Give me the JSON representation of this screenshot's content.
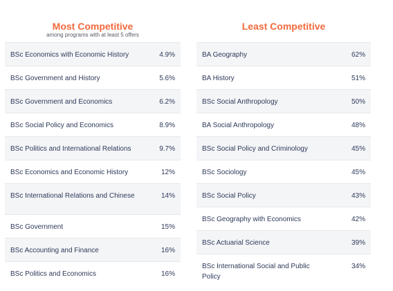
{
  "most": {
    "title": "Most Competitive",
    "subtitle": "among programs with at least 5 offers",
    "rows": [
      {
        "name": "BSc Economics with Economic History",
        "value": "4.9%"
      },
      {
        "name": "BSc Government and History",
        "value": "5.6%"
      },
      {
        "name": "BSc Government and Economics",
        "value": "6.2%"
      },
      {
        "name": "BSc Social Policy and Economics",
        "value": "8.9%"
      },
      {
        "name": "BSc Politics and International Relations",
        "value": "9.7%"
      },
      {
        "name": "BSc Economics and Economic History",
        "value": "12%"
      },
      {
        "name": "BSc International Relations and Chinese",
        "value": "14%"
      },
      {
        "name": "BSc Government",
        "value": "15%"
      },
      {
        "name": "BSc Accounting and Finance",
        "value": "16%"
      },
      {
        "name": "BSc Politics and Economics",
        "value": "16%"
      }
    ]
  },
  "least": {
    "title": "Least Competitive",
    "rows": [
      {
        "name": "BA Geography",
        "value": "62%"
      },
      {
        "name": "BA History",
        "value": "51%"
      },
      {
        "name": "BSc Social Anthropology",
        "value": "50%"
      },
      {
        "name": "BA Social Anthropology",
        "value": "48%"
      },
      {
        "name": "BSc Social Policy and Criminology",
        "value": "45%"
      },
      {
        "name": "BSc Sociology",
        "value": "45%"
      },
      {
        "name": "BSc Social Policy",
        "value": "43%"
      },
      {
        "name": "BSc Geography with Economics",
        "value": "42%"
      },
      {
        "name": "BSc Actuarial Science",
        "value": "39%"
      },
      {
        "name": "BSc International Social and Public Policy",
        "value": "34%"
      }
    ]
  },
  "colors": {
    "accent": "#f26a3d",
    "text": "#2e3a59",
    "row_alt": "#f4f5f7"
  }
}
